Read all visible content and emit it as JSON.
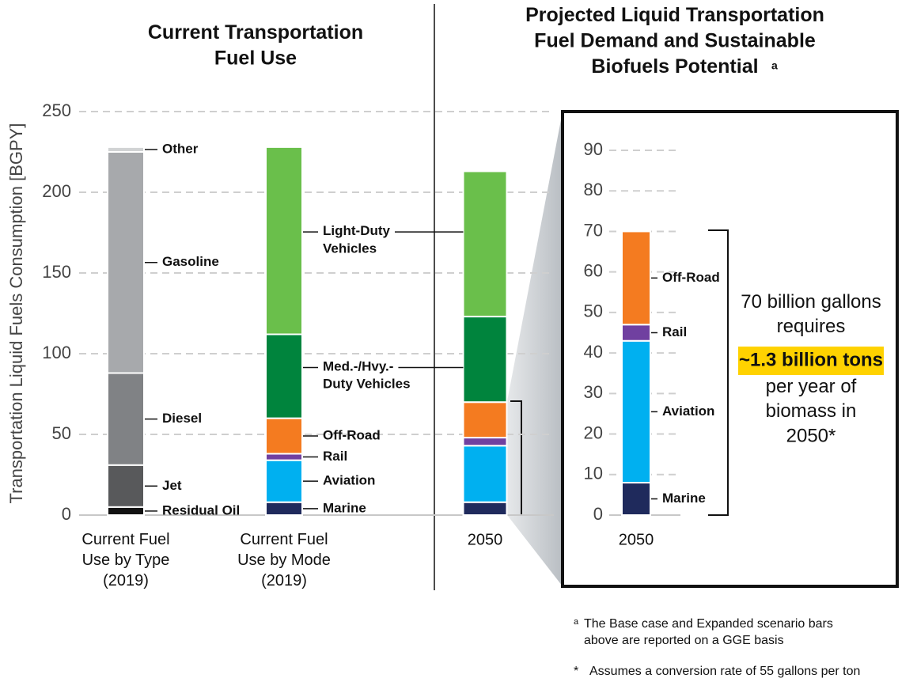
{
  "left_title": "Current Transportation\nFuel Use",
  "right_title": "Projected Liquid Transportation\nFuel Demand and Sustainable\nBiofuels Potential",
  "right_title_note": "a",
  "callout": {
    "before": "70 billion gallons\nrequires",
    "highlight": "~1.3 billion tons",
    "after": "per year of\nbiomass in\n2050*"
  },
  "footnotes": [
    {
      "mark": "a",
      "text": "The Base case and Expanded scenario bars\nabove are reported on a GGE basis"
    },
    {
      "mark": "*",
      "text": "Assumes a conversion rate of 55 gallons per ton"
    }
  ],
  "chart_data": [
    {
      "type": "stacked_bar",
      "ylabel": "Transportation Liquid Fuels Consumption [BGPY]",
      "ylim": [
        0,
        250
      ],
      "yticks": [
        0,
        50,
        100,
        150,
        200,
        250
      ],
      "grid": true,
      "bars": [
        {
          "label": "Current Fuel\nUse by Type\n(2019)",
          "segments": [
            {
              "name": "Residual Oil",
              "color": "#111111",
              "value": 5
            },
            {
              "name": "Jet",
              "color": "#58595b",
              "value": 26
            },
            {
              "name": "Diesel",
              "color": "#808285",
              "value": 57
            },
            {
              "name": "Gasoline",
              "color": "#a7a9ac",
              "value": 137
            },
            {
              "name": "Other",
              "color": "#d1d3d4",
              "value": 3
            }
          ]
        },
        {
          "label": "Current Fuel\nUse by Mode\n(2019)",
          "segments": [
            {
              "name": "Marine",
              "color": "#1f2a5c",
              "value": 8
            },
            {
              "name": "Aviation",
              "color": "#00b0f0",
              "value": 26
            },
            {
              "name": "Rail",
              "color": "#7040a0",
              "value": 4
            },
            {
              "name": "Off-Road",
              "color": "#f47b20",
              "value": 22
            },
            {
              "name": "Med.-/Hvy.-\nDuty Vehicles",
              "color": "#00843d",
              "value": 52
            },
            {
              "name": "Light-Duty\nVehicles",
              "color": "#6abf4b",
              "value": 116
            }
          ]
        },
        {
          "label": "2050",
          "segments": [
            {
              "color": "#1f2a5c",
              "value": 8
            },
            {
              "color": "#00b0f0",
              "value": 35
            },
            {
              "color": "#7040a0",
              "value": 5
            },
            {
              "color": "#f47b20",
              "value": 22
            },
            {
              "color": "#00843d",
              "value": 53
            },
            {
              "color": "#6abf4b",
              "value": 90
            }
          ]
        }
      ]
    },
    {
      "type": "stacked_bar",
      "ylim": [
        0,
        90
      ],
      "yticks": [
        0,
        10,
        20,
        30,
        40,
        50,
        60,
        70,
        80,
        90
      ],
      "grid": true,
      "bars": [
        {
          "label": "2050",
          "segments": [
            {
              "name": "Marine",
              "color": "#1f2a5c",
              "value": 8
            },
            {
              "name": "Aviation",
              "color": "#00b0f0",
              "value": 35
            },
            {
              "name": "Rail",
              "color": "#7040a0",
              "value": 4
            },
            {
              "name": "Off-Road",
              "color": "#f47b20",
              "value": 23
            }
          ]
        }
      ]
    }
  ]
}
